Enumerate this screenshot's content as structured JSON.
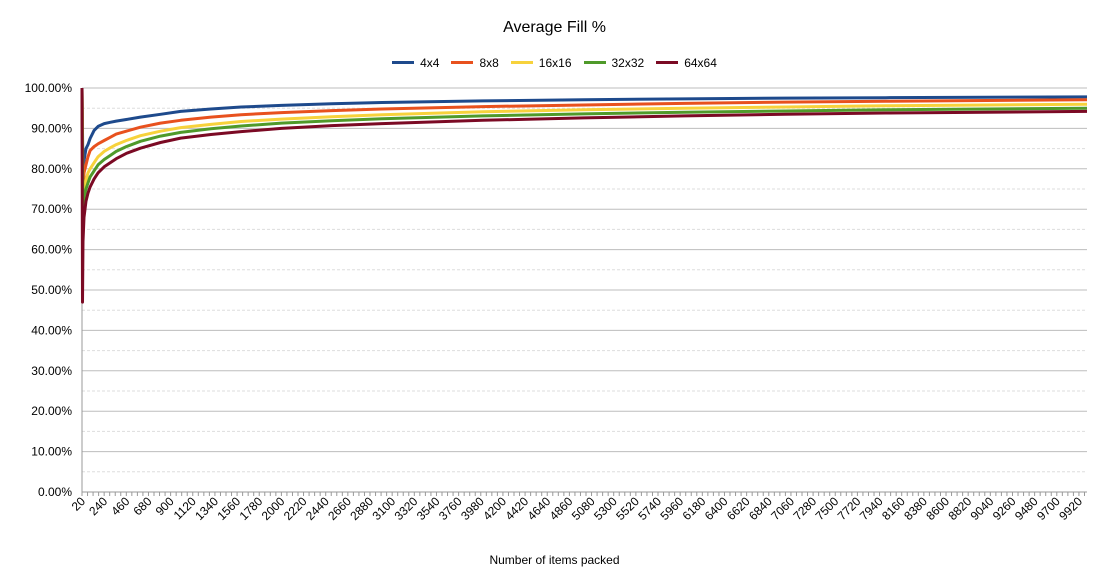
{
  "chart_data": {
    "type": "line",
    "title": "Average Fill %",
    "xlabel": "Number of items packed",
    "ylabel": "",
    "ylim": [
      0,
      1
    ],
    "yticks": [
      "0.00%",
      "10.00%",
      "20.00%",
      "30.00%",
      "40.00%",
      "50.00%",
      "60.00%",
      "70.00%",
      "80.00%",
      "90.00%",
      "100.00%"
    ],
    "xlim": [
      20,
      10000
    ],
    "xticks": [
      20,
      240,
      460,
      680,
      900,
      1120,
      1340,
      1560,
      1780,
      2000,
      2220,
      2440,
      2660,
      2880,
      3100,
      3320,
      3540,
      3760,
      3980,
      4200,
      4420,
      4640,
      4860,
      5080,
      5300,
      5520,
      5740,
      5960,
      6180,
      6400,
      6620,
      6840,
      7060,
      7280,
      7500,
      7720,
      7940,
      8160,
      8380,
      8600,
      8820,
      9040,
      9260,
      9480,
      9700,
      9920
    ],
    "grid": "horizontal, dashed minor",
    "legend_position": "top",
    "series": [
      {
        "name": "4x4",
        "color": "#1e4a8c",
        "x": [
          20,
          30,
          40,
          60,
          80,
          100,
          140,
          180,
          240,
          300,
          360,
          460,
          600,
          800,
          1000,
          1300,
          1600,
          2000,
          2500,
          3000,
          4000,
          5000,
          6000,
          7000,
          8000,
          9000,
          10000
        ],
        "y": [
          1.0,
          0.78,
          0.82,
          0.85,
          0.86,
          0.875,
          0.895,
          0.905,
          0.912,
          0.915,
          0.918,
          0.922,
          0.928,
          0.935,
          0.942,
          0.948,
          0.953,
          0.957,
          0.961,
          0.964,
          0.968,
          0.971,
          0.973,
          0.975,
          0.976,
          0.977,
          0.978
        ]
      },
      {
        "name": "8x8",
        "color": "#e8511e",
        "x": [
          20,
          30,
          40,
          60,
          80,
          100,
          140,
          180,
          240,
          300,
          360,
          460,
          600,
          800,
          1000,
          1300,
          1600,
          2000,
          2500,
          3000,
          4000,
          5000,
          6000,
          7000,
          8000,
          9000,
          10000
        ],
        "y": [
          1.0,
          0.72,
          0.79,
          0.81,
          0.83,
          0.845,
          0.855,
          0.862,
          0.87,
          0.878,
          0.886,
          0.893,
          0.903,
          0.913,
          0.92,
          0.928,
          0.934,
          0.939,
          0.944,
          0.948,
          0.954,
          0.958,
          0.962,
          0.965,
          0.967,
          0.969,
          0.971
        ]
      },
      {
        "name": "16x16",
        "color": "#f7d23c",
        "x": [
          20,
          30,
          40,
          60,
          80,
          100,
          140,
          180,
          240,
          300,
          360,
          460,
          600,
          800,
          1000,
          1300,
          1600,
          2000,
          2500,
          3000,
          4000,
          5000,
          6000,
          7000,
          8000,
          9000,
          10000
        ],
        "y": [
          1.0,
          0.7,
          0.75,
          0.77,
          0.79,
          0.8,
          0.815,
          0.83,
          0.843,
          0.852,
          0.86,
          0.87,
          0.882,
          0.893,
          0.902,
          0.91,
          0.917,
          0.923,
          0.929,
          0.934,
          0.941,
          0.946,
          0.95,
          0.953,
          0.956,
          0.958,
          0.96
        ]
      },
      {
        "name": "32x32",
        "color": "#4f9a2a",
        "x": [
          20,
          30,
          40,
          60,
          80,
          100,
          140,
          180,
          240,
          300,
          360,
          460,
          600,
          800,
          1000,
          1300,
          1600,
          2000,
          2500,
          3000,
          4000,
          5000,
          6000,
          7000,
          8000,
          9000,
          10000
        ],
        "y": [
          1.0,
          0.66,
          0.73,
          0.75,
          0.765,
          0.78,
          0.795,
          0.81,
          0.823,
          0.833,
          0.843,
          0.855,
          0.868,
          0.881,
          0.89,
          0.899,
          0.906,
          0.913,
          0.919,
          0.924,
          0.931,
          0.936,
          0.94,
          0.943,
          0.946,
          0.948,
          0.95
        ]
      },
      {
        "name": "64x64",
        "color": "#7b0a24",
        "x": [
          20,
          25,
          30,
          40,
          60,
          80,
          100,
          140,
          180,
          240,
          300,
          360,
          460,
          600,
          800,
          1000,
          1300,
          1600,
          2000,
          2500,
          3000,
          4000,
          5000,
          6000,
          7000,
          8000,
          9000,
          10000
        ],
        "y": [
          1.0,
          0.47,
          0.62,
          0.68,
          0.72,
          0.74,
          0.755,
          0.775,
          0.79,
          0.805,
          0.815,
          0.825,
          0.838,
          0.851,
          0.865,
          0.876,
          0.885,
          0.892,
          0.9,
          0.907,
          0.912,
          0.92,
          0.926,
          0.931,
          0.935,
          0.938,
          0.94,
          0.942
        ]
      }
    ]
  }
}
